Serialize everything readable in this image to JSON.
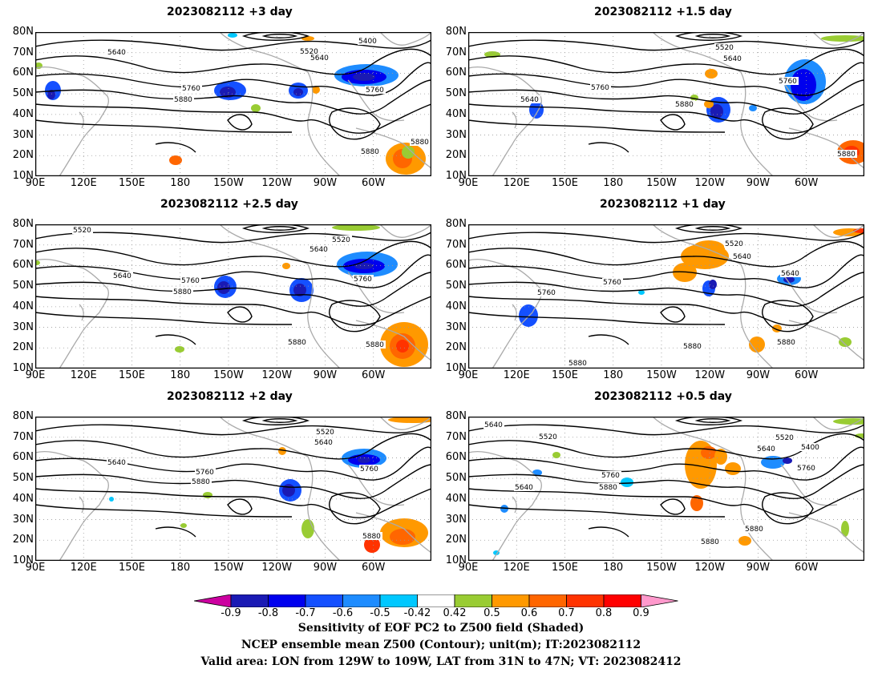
{
  "panels": [
    {
      "title": "2023082112 +3 day",
      "contour_labels": [
        "5640",
        "5520",
        "5640",
        "5400",
        "5760",
        "5880",
        "5760",
        "5880",
        "5880"
      ]
    },
    {
      "title": "2023082112 +1.5 day",
      "contour_labels": [
        "5520",
        "5640",
        "5640",
        "5760",
        "5760",
        "5880",
        "5880"
      ]
    },
    {
      "title": "2023082112 +2.5 day",
      "contour_labels": [
        "5520",
        "5520",
        "5640",
        "5640",
        "5760",
        "5880",
        "5760",
        "5880",
        "5880"
      ]
    },
    {
      "title": "2023082112 +1 day",
      "contour_labels": [
        "5520",
        "5640",
        "5760",
        "5640",
        "5760",
        "5880",
        "5880",
        "5880"
      ]
    },
    {
      "title": "2023082112 +2 day",
      "contour_labels": [
        "5520",
        "5640",
        "5640",
        "5760",
        "5880",
        "5760",
        "5880"
      ]
    },
    {
      "title": "2023082112 +0.5 day",
      "contour_labels": [
        "5640",
        "5520",
        "5520",
        "5640",
        "5400",
        "5760",
        "5640",
        "5760",
        "5880",
        "5880",
        "5880"
      ]
    }
  ],
  "lat_labels": [
    "80N",
    "70N",
    "60N",
    "50N",
    "40N",
    "30N",
    "20N",
    "10N"
  ],
  "lon_labels": [
    "90E",
    "120E",
    "150E",
    "180",
    "150W",
    "120W",
    "90W",
    "60W"
  ],
  "colorbar": {
    "labels": [
      "-0.9",
      "-0.8",
      "-0.7",
      "-0.6",
      "-0.5",
      "-0.42",
      "0.42",
      "0.5",
      "0.6",
      "0.7",
      "0.8",
      "0.9"
    ],
    "colors": [
      "#cc00a0",
      "#1a1ab4",
      "#0000ee",
      "#1450ff",
      "#1e8cff",
      "#00c8ff",
      "#ffffff",
      "#99cc33",
      "#ff9900",
      "#ff6600",
      "#ff3300",
      "#ff0000",
      "#ff99cc"
    ]
  },
  "caption": {
    "line1": "Sensitivity of EOF PC2 to Z500 field (Shaded)",
    "line2": "NCEP ensemble mean Z500 (Contour); unit(m); IT:2023082112",
    "line3": "Valid area: LON from 129W to 109W, LAT from 31N to 47N; VT: 2023082412"
  }
}
